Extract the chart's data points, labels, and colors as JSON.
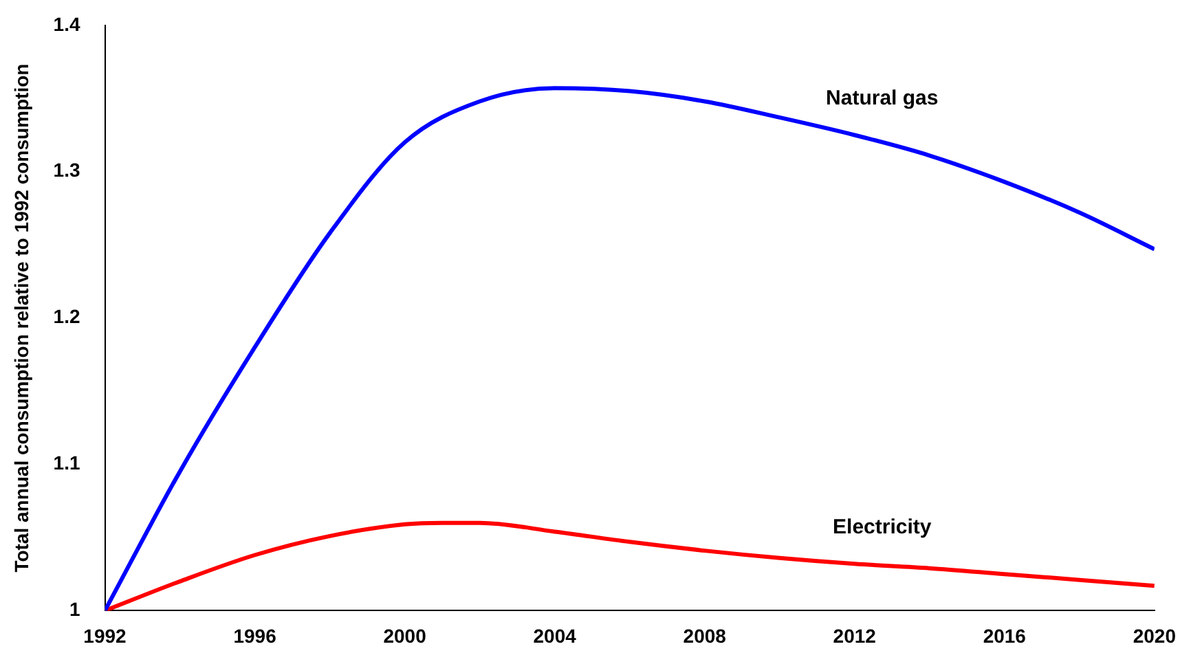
{
  "chart_data": {
    "type": "line",
    "ylabel": "Total annual consumption relative to 1992 consumption",
    "xlim": [
      1992,
      2020
    ],
    "xticks": [
      1992,
      1996,
      2000,
      2004,
      2008,
      2012,
      2016,
      2020
    ],
    "ylim": [
      1,
      1.4
    ],
    "yticks": [
      1,
      1.1,
      1.2,
      1.3,
      1.4
    ],
    "grid": false,
    "legend": false,
    "marker": "none",
    "line_style": "solid",
    "series": [
      {
        "name": "Natural gas",
        "color": "#0000ff",
        "x": [
          1992,
          1994,
          1996,
          1998,
          2000,
          2002,
          2004,
          2006,
          2008,
          2010,
          2012,
          2014,
          2016,
          2018,
          2020
        ],
        "values": [
          1.0,
          1.095,
          1.18,
          1.258,
          1.32,
          1.348,
          1.357,
          1.355,
          1.348,
          1.337,
          1.325,
          1.311,
          1.293,
          1.272,
          1.247
        ]
      },
      {
        "name": "Electricity",
        "color": "#ff0000",
        "x": [
          1992,
          1994,
          1996,
          1998,
          2000,
          2001,
          2002,
          2004,
          2006,
          2008,
          2010,
          2012,
          2014,
          2016,
          2018,
          2020
        ],
        "values": [
          1.0,
          1.02,
          1.038,
          1.051,
          1.059,
          1.06,
          1.06,
          1.054,
          1.047,
          1.041,
          1.036,
          1.032,
          1.029,
          1.025,
          1.021,
          1.017
        ]
      }
    ]
  }
}
